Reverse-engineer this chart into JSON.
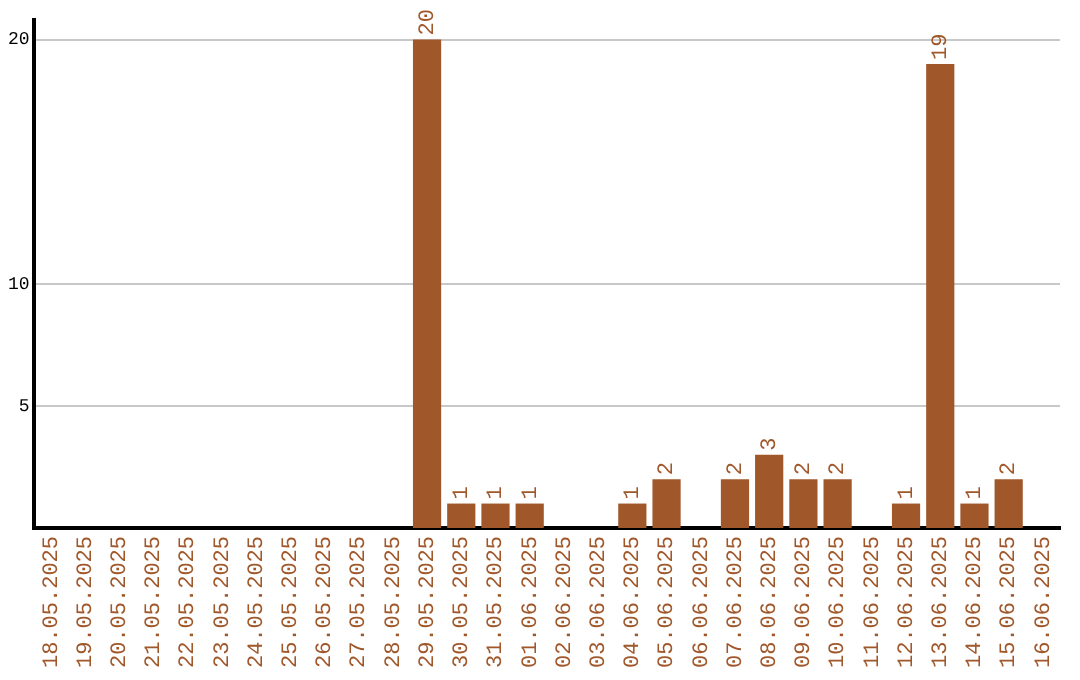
{
  "chart_data": {
    "type": "bar",
    "categories": [
      "18.05.2025",
      "19.05.2025",
      "20.05.2025",
      "21.05.2025",
      "22.05.2025",
      "23.05.2025",
      "24.05.2025",
      "25.05.2025",
      "26.05.2025",
      "27.05.2025",
      "28.05.2025",
      "29.05.2025",
      "30.05.2025",
      "31.05.2025",
      "01.06.2025",
      "02.06.2025",
      "03.06.2025",
      "04.06.2025",
      "05.06.2025",
      "06.06.2025",
      "07.06.2025",
      "08.06.2025",
      "09.06.2025",
      "10.06.2025",
      "11.06.2025",
      "12.06.2025",
      "13.06.2025",
      "14.06.2025",
      "15.06.2025",
      "16.06.2025"
    ],
    "values": [
      0,
      0,
      0,
      0,
      0,
      0,
      0,
      0,
      0,
      0,
      0,
      20,
      1,
      1,
      1,
      0,
      0,
      1,
      2,
      0,
      2,
      3,
      2,
      2,
      0,
      1,
      19,
      1,
      2,
      0
    ],
    "value_labels": [
      null,
      null,
      null,
      null,
      null,
      null,
      null,
      null,
      null,
      null,
      null,
      "20",
      "1",
      "1",
      "1",
      null,
      null,
      "1",
      "2",
      null,
      "2",
      "3",
      "2",
      "2",
      null,
      "1",
      "19",
      "1",
      "2",
      null
    ],
    "color": "#a0572a",
    "ylim": [
      0,
      20.8
    ],
    "yticks": [
      5,
      10,
      20
    ],
    "grid": "y",
    "legend": false
  }
}
